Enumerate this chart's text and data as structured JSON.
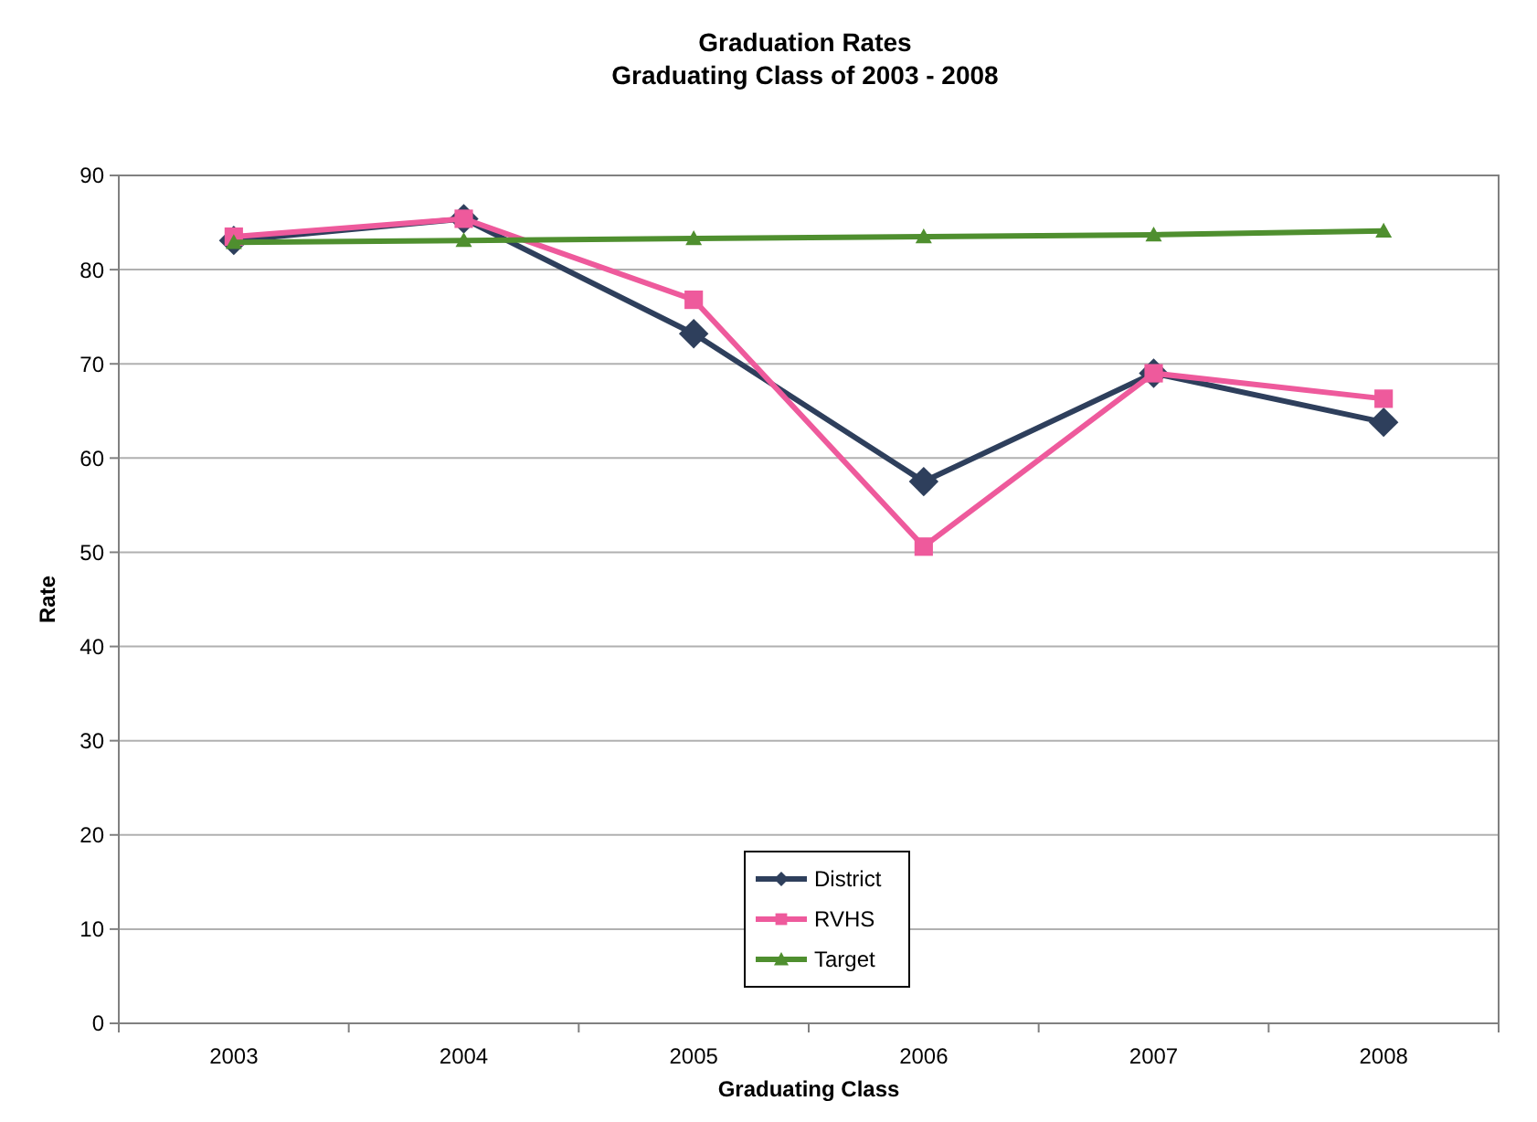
{
  "chart_data": {
    "type": "line",
    "title": "Graduation Rates",
    "subtitle": "Graduating Class of 2003 - 2008",
    "xlabel": "Graduating Class",
    "ylabel": "Rate",
    "categories": [
      "2003",
      "2004",
      "2005",
      "2006",
      "2007",
      "2008"
    ],
    "series": [
      {
        "name": "District",
        "color": "#2e3f5c",
        "marker": "diamond",
        "values": [
          83.1,
          85.4,
          73.2,
          57.5,
          69,
          63.8
        ]
      },
      {
        "name": "RVHS",
        "color": "#ee5a9c",
        "marker": "square",
        "values": [
          83.5,
          85.4,
          76.8,
          50.6,
          69,
          66.3
        ]
      },
      {
        "name": "Target",
        "color": "#4f8f2f",
        "marker": "triangle",
        "values": [
          82.9,
          83.1,
          83.3,
          83.5,
          83.7,
          84.1
        ]
      }
    ],
    "ylim": [
      0,
      90
    ],
    "yticks": [
      0,
      10,
      20,
      30,
      40,
      50,
      60,
      70,
      80,
      90
    ],
    "grid": "y",
    "legend": "bottom",
    "line_style": "solid"
  }
}
